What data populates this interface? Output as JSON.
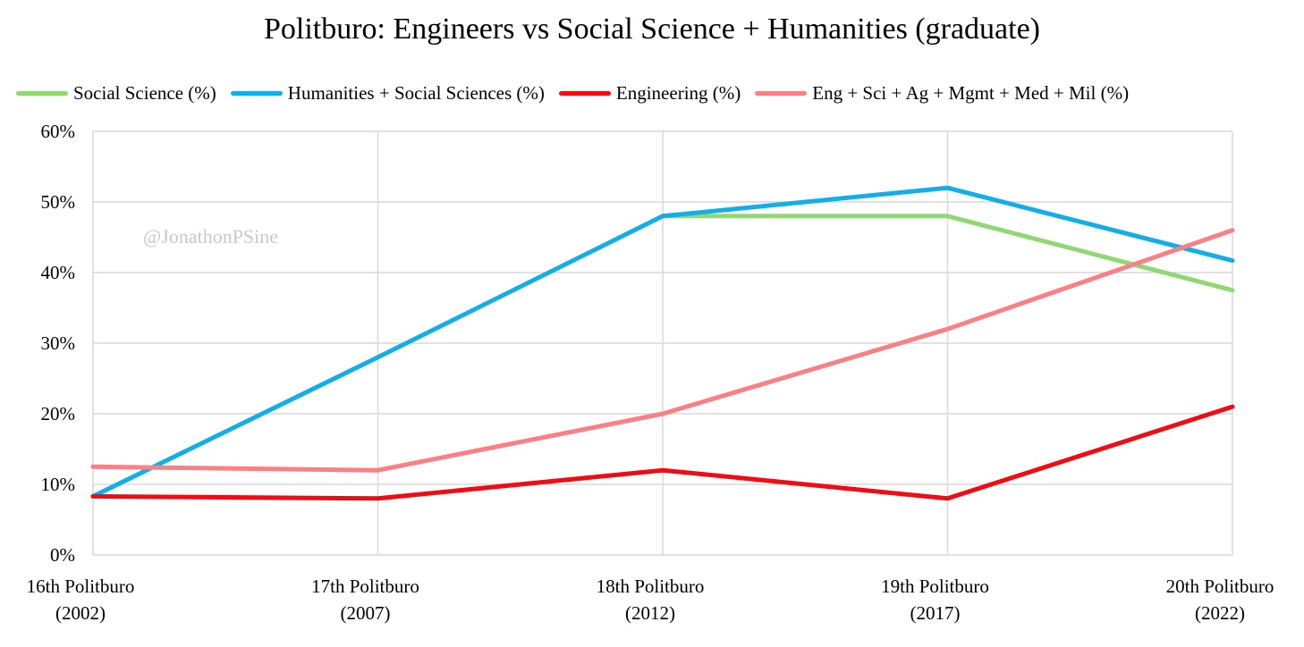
{
  "chart_data": {
    "type": "line",
    "title": "Politburo: Engineers vs Social Science + Humanities (graduate)",
    "watermark": "@JonathonPSine",
    "categories": [
      [
        "16th Politburo",
        "(2002)"
      ],
      [
        "17th Politburo",
        "(2007)"
      ],
      [
        "18th Politburo",
        "(2012)"
      ],
      [
        "19th Politburo",
        "(2017)"
      ],
      [
        "20th Politburo",
        "(2022)"
      ]
    ],
    "y_ticks": [
      "0%",
      "10%",
      "20%",
      "30%",
      "40%",
      "50%",
      "60%"
    ],
    "ylim": [
      0,
      60
    ],
    "grid": true,
    "legend_position": "top-left",
    "series": [
      {
        "name": "Social Science (%)",
        "color": "#8fd872",
        "values": [
          null,
          null,
          48,
          48,
          37.5
        ],
        "link_from": 1
      },
      {
        "name": "Humanities + Social Sciences (%)",
        "color": "#12aee8",
        "values": [
          8.3,
          28,
          48,
          52,
          41.7
        ]
      },
      {
        "name": "Engineering (%)",
        "color": "#f00c12",
        "values": [
          8.3,
          8,
          12,
          8,
          21
        ]
      },
      {
        "name": "Eng + Sci + Ag + Mgmt + Med + Mil (%)",
        "color": "#fa8085",
        "values": [
          12.5,
          12,
          20,
          32,
          46
        ]
      }
    ]
  }
}
